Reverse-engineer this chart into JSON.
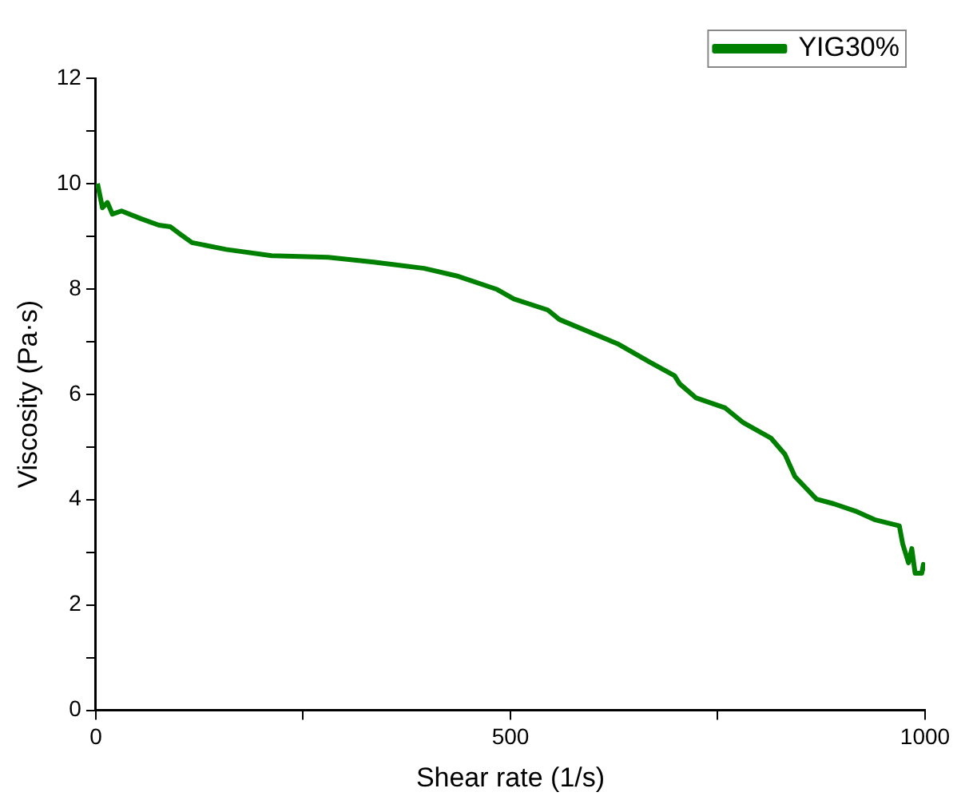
{
  "chart_data": {
    "type": "line",
    "xlabel": "Shear rate (1/s)",
    "ylabel": "Viscosity (Pa·s)",
    "xlim": [
      0,
      1000
    ],
    "xticks": [
      0,
      {
        "value": 250,
        "label": null
      },
      500,
      {
        "value": 750,
        "label": null
      },
      1000
    ],
    "ylim": [
      0,
      12
    ],
    "yticks": [
      0,
      {
        "value": 1,
        "label": null
      },
      2,
      {
        "value": 3,
        "label": null
      },
      4,
      {
        "value": 5,
        "label": null
      },
      6,
      {
        "value": 7,
        "label": null
      },
      8,
      {
        "value": 9,
        "label": null
      },
      10,
      {
        "value": 11,
        "label": null
      },
      12
    ],
    "legend": "top right",
    "marker": "none",
    "line_style": "solid",
    "series": [
      {
        "name": "YIG30%",
        "color": "#008000",
        "x": [
          2,
          8,
          14,
          20,
          31,
          55,
          76,
          90,
          100,
          116,
          157,
          212,
          280,
          335,
          396,
          437,
          484,
          504,
          545,
          559,
          629,
          669,
          698,
          704,
          724,
          759,
          780,
          814,
          831,
          843,
          869,
          890,
          918,
          939,
          969,
          973,
          980,
          984,
          988,
          996,
          998,
          1000
        ],
        "values": [
          10.0,
          9.54,
          9.64,
          9.42,
          9.48,
          9.33,
          9.21,
          9.18,
          9.06,
          8.88,
          8.75,
          8.63,
          8.6,
          8.51,
          8.39,
          8.24,
          7.99,
          7.81,
          7.6,
          7.42,
          6.96,
          6.6,
          6.35,
          6.2,
          5.93,
          5.74,
          5.47,
          5.17,
          4.86,
          4.44,
          4.01,
          3.92,
          3.77,
          3.62,
          3.5,
          3.16,
          2.8,
          3.07,
          2.6,
          2.6,
          2.77,
          2.65
        ]
      }
    ]
  }
}
